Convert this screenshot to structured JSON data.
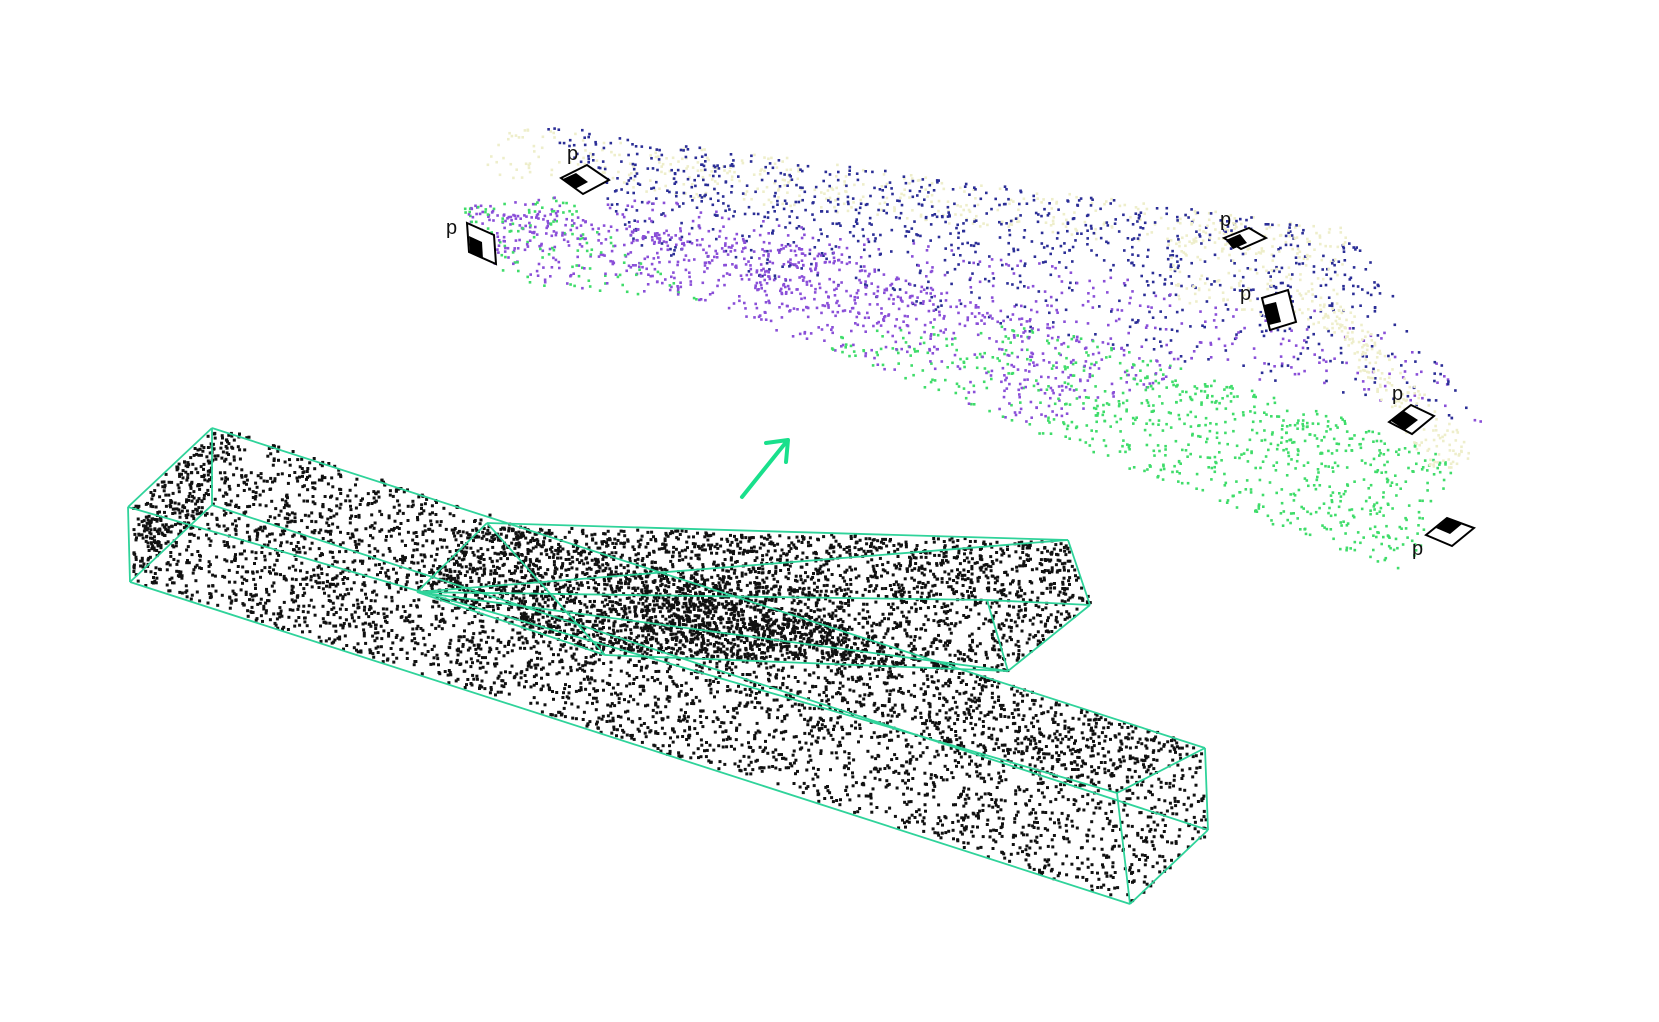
{
  "colors": {
    "background": "#ffffff",
    "wireframe": "#2fd39a",
    "arrow": "#19e08c",
    "raw_points": "#111111",
    "segment_blue": "#2b2e96",
    "segment_purple": "#8a4fd8",
    "segment_green": "#3fdc6a",
    "segment_cream": "#eeeecb",
    "marker": "#000000"
  },
  "markers": [
    {
      "label": "p",
      "icon": "plane-normal-marker"
    },
    {
      "label": "p",
      "icon": "plane-normal-marker"
    },
    {
      "label": "p",
      "icon": "plane-normal-marker"
    },
    {
      "label": "p",
      "icon": "plane-normal-marker"
    },
    {
      "label": "p",
      "icon": "plane-normal-marker"
    },
    {
      "label": "p",
      "icon": "plane-normal-marker"
    }
  ],
  "arrow": {
    "icon": "arrow-up-right-icon"
  }
}
